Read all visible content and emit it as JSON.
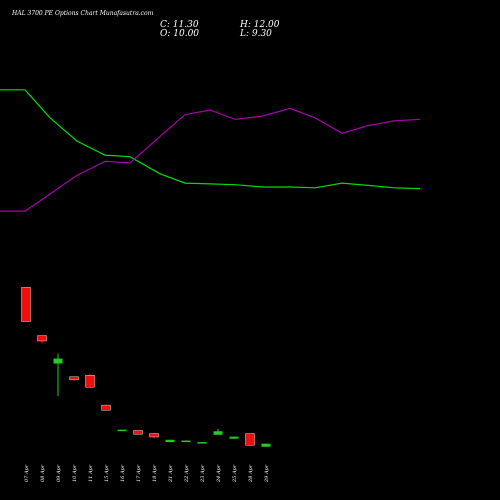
{
  "header": {
    "title": "HAL 3700 PE Options Chart Munafasutra.com",
    "close_label": "C: 11.30",
    "open_label": "O: 10.00",
    "high_label": "H: 12.00",
    "low_label": "L: 9.30"
  },
  "colors": {
    "background": "#000000",
    "up": "#22cc22",
    "down": "#ee1111",
    "line_green": "#00dd00",
    "line_magenta": "#aa00aa",
    "text": "#ffffff"
  },
  "chart_data": {
    "type": "candlestick",
    "categories": [
      "07 Apr",
      "08 Apr",
      "09 Apr",
      "10 Apr",
      "11 Apr",
      "15 Apr",
      "16 Apr",
      "17 Apr",
      "18 Apr",
      "21 Apr",
      "22 Apr",
      "23 Apr",
      "24 Apr",
      "25 Apr",
      "28 Apr",
      "29 Apr"
    ],
    "candles": [
      {
        "date": "07 Apr",
        "open": 81.0,
        "close": 59.0,
        "high": 81.0,
        "low": 59.0,
        "direction": "down"
      },
      {
        "date": "08 Apr",
        "open": 50.0,
        "close": 46.5,
        "high": 50.0,
        "low": 45.0,
        "direction": "down"
      },
      {
        "date": "09 Apr",
        "open": 32.0,
        "close": 35.2,
        "high": 38.5,
        "low": 11.0,
        "direction": "up"
      },
      {
        "date": "10 Apr",
        "open": 23.5,
        "close": 21.5,
        "high": 23.5,
        "low": 21.0,
        "direction": "down"
      },
      {
        "date": "11 Apr",
        "open": 24.5,
        "close": 16.8,
        "high": 25.5,
        "low": 16.8,
        "direction": "down"
      },
      {
        "date": "15 Apr",
        "open": 5.3,
        "close": 2.0,
        "high": 5.3,
        "low": 2.0,
        "direction": "down"
      },
      {
        "date": "16 Apr",
        "open": -11.2,
        "close": -10.5,
        "high": -10.5,
        "low": -11.2,
        "direction": "up"
      },
      {
        "date": "17 Apr",
        "open": -11.0,
        "close": -13.5,
        "high": -11.0,
        "low": -13.5,
        "direction": "down"
      },
      {
        "date": "18 Apr",
        "open": -13.0,
        "close": -15.2,
        "high": -12.5,
        "low": -16.0,
        "direction": "down"
      },
      {
        "date": "21 Apr",
        "open": -18.5,
        "close": -17.0,
        "high": -17.0,
        "low": -18.5,
        "direction": "up"
      },
      {
        "date": "22 Apr",
        "open": -18.0,
        "close": -17.5,
        "high": -17.5,
        "low": -18.0,
        "direction": "up"
      },
      {
        "date": "23 Apr",
        "open": -19.0,
        "close": -18.5,
        "high": -18.5,
        "low": -19.0,
        "direction": "up"
      },
      {
        "date": "24 Apr",
        "open": -13.8,
        "close": -11.5,
        "high": -10.0,
        "low": -13.8,
        "direction": "up"
      },
      {
        "date": "25 Apr",
        "open": -16.3,
        "close": -15.0,
        "high": -15.0,
        "low": -16.3,
        "direction": "up"
      },
      {
        "date": "28 Apr",
        "open": -13.0,
        "close": -20.5,
        "high": -13.0,
        "low": -20.5,
        "direction": "down"
      },
      {
        "date": "29 Apr",
        "open": -21.5,
        "close": -19.5,
        "high": -19.5,
        "low": -21.5,
        "direction": "up"
      }
    ],
    "series": [
      {
        "color": "#00dd00",
        "x": [
          0,
          25,
          50,
          77,
          105,
          130,
          160,
          185,
          210,
          235,
          262,
          290,
          315,
          342,
          368,
          394,
          420
        ],
        "values": [
          208,
          208,
          190,
          175,
          166,
          165,
          154,
          148,
          147.5,
          147,
          145.5,
          145.5,
          145,
          148,
          146.5,
          145,
          144.5
        ]
      },
      {
        "color": "#aa00aa",
        "x": [
          0,
          25,
          50,
          77,
          105,
          130,
          160,
          185,
          210,
          235,
          262,
          290,
          315,
          342,
          368,
          394,
          420
        ],
        "values": [
          130,
          130,
          141,
          153,
          162,
          161,
          178,
          192,
          195,
          189,
          191,
          196,
          190,
          180,
          185,
          188,
          189
        ]
      }
    ],
    "ylim": [
      -30,
      240
    ],
    "xlim": [
      0,
      420
    ]
  }
}
